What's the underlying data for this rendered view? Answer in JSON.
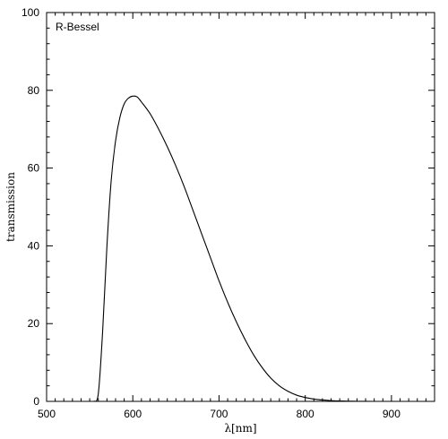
{
  "chart_data": {
    "type": "line",
    "title": "",
    "xlabel": "λ[nm]",
    "ylabel": "transmission",
    "xlim": [
      500,
      950
    ],
    "ylim": [
      0,
      100
    ],
    "xticks": [
      500,
      600,
      700,
      800,
      900
    ],
    "yticks": [
      0,
      20,
      40,
      60,
      80,
      100
    ],
    "grid": false,
    "legend_position": "top-left",
    "series": [
      {
        "name": "R-Bessel",
        "color": "#000000",
        "x": [
          555,
          560,
          565,
          570,
          575,
          580,
          585,
          590,
          595,
          600,
          605,
          610,
          620,
          630,
          640,
          650,
          660,
          670,
          680,
          690,
          700,
          710,
          720,
          730,
          740,
          750,
          760,
          770,
          780,
          790,
          800,
          810,
          820,
          830,
          840,
          850,
          860,
          870,
          880,
          890,
          900
        ],
        "y": [
          0.0,
          2.0,
          18.0,
          40.0,
          57.0,
          67.0,
          73.0,
          76.5,
          78.0,
          78.5,
          78.3,
          77.0,
          74.0,
          70.0,
          65.5,
          60.5,
          55.0,
          49.0,
          43.0,
          37.0,
          31.0,
          25.5,
          20.5,
          16.0,
          12.0,
          8.7,
          6.0,
          4.0,
          2.6,
          1.6,
          1.0,
          0.6,
          0.35,
          0.2,
          0.1,
          0.05,
          0.02,
          0.01,
          0.0,
          0.0,
          0.0
        ]
      }
    ]
  }
}
